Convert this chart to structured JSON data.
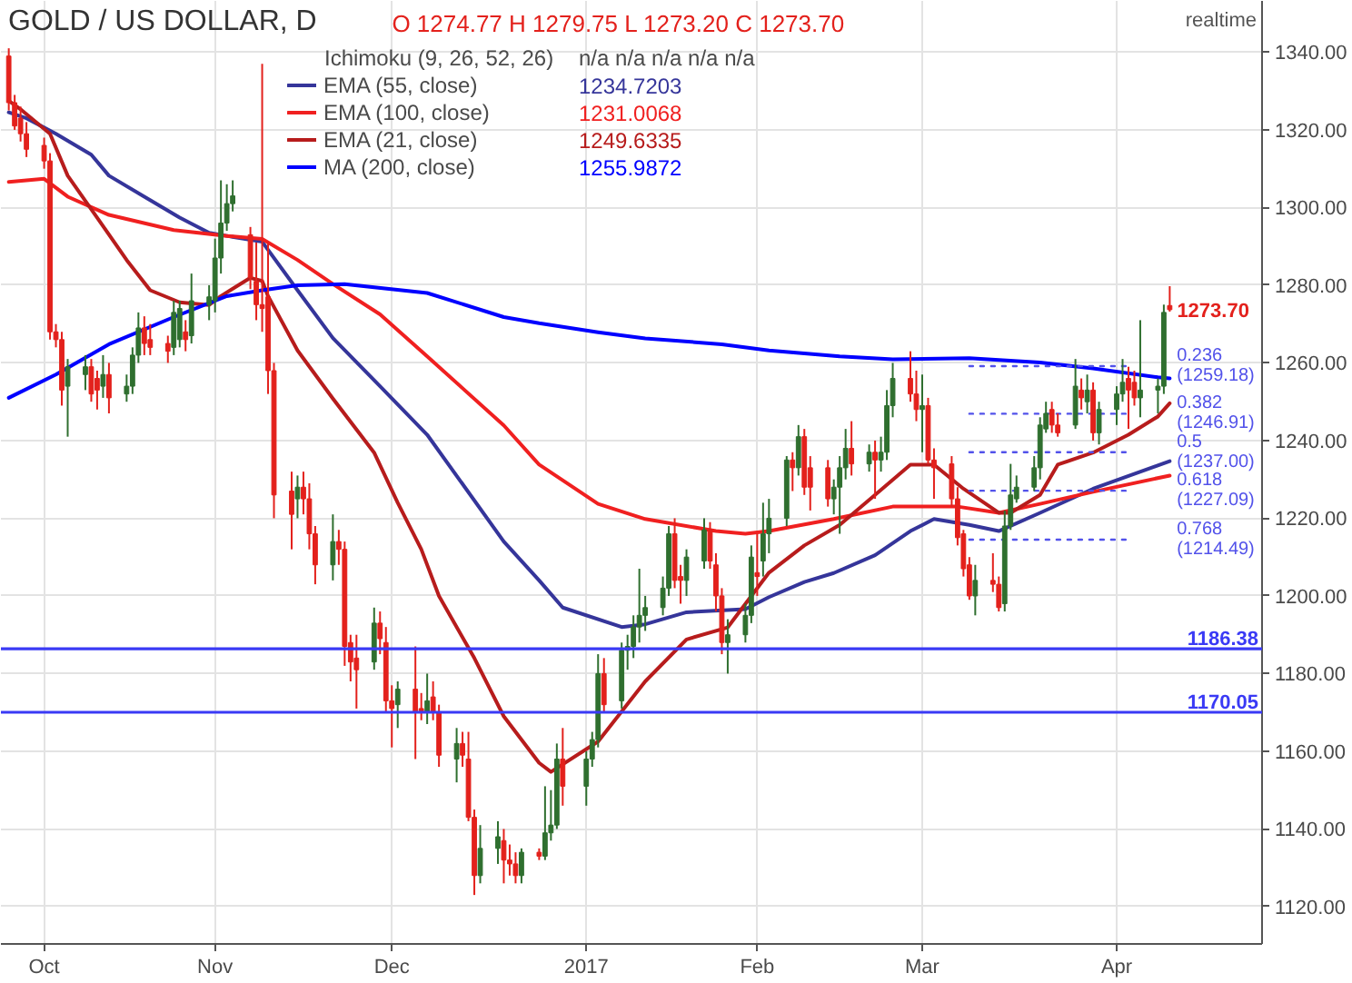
{
  "chart_data": {
    "type": "candlestick",
    "title": "GOLD / US DOLLAR, D",
    "subtitle": "O 1274.77 H 1279.75 L 1273.20 C 1273.70",
    "x": [
      "2016-09-27",
      "2016-09-28",
      "2016-09-29",
      "2016-09-30",
      "2016-10-03",
      "2016-10-04",
      "2016-10-05",
      "2016-10-06",
      "2016-10-07",
      "2016-10-10",
      "2016-10-11",
      "2016-10-12",
      "2016-10-13",
      "2016-10-14",
      "2016-10-17",
      "2016-10-18",
      "2016-10-19",
      "2016-10-20",
      "2016-10-21",
      "2016-10-24",
      "2016-10-25",
      "2016-10-26",
      "2016-10-27",
      "2016-10-28",
      "2016-10-31",
      "2016-11-01",
      "2016-11-02",
      "2016-11-03",
      "2016-11-04",
      "2016-11-07",
      "2016-11-08",
      "2016-11-09",
      "2016-11-10",
      "2016-11-11",
      "2016-11-14",
      "2016-11-15",
      "2016-11-16",
      "2016-11-17",
      "2016-11-18",
      "2016-11-21",
      "2016-11-22",
      "2016-11-23",
      "2016-11-24",
      "2016-11-25",
      "2016-11-28",
      "2016-11-29",
      "2016-11-30",
      "2016-12-01",
      "2016-12-02",
      "2016-12-05",
      "2016-12-06",
      "2016-12-07",
      "2016-12-08",
      "2016-12-09",
      "2016-12-12",
      "2016-12-13",
      "2016-12-14",
      "2016-12-15",
      "2016-12-16",
      "2016-12-19",
      "2016-12-20",
      "2016-12-21",
      "2016-12-22",
      "2016-12-23",
      "2016-12-26",
      "2016-12-27",
      "2016-12-28",
      "2016-12-29",
      "2016-12-30",
      "2017-01-03",
      "2017-01-04",
      "2017-01-05",
      "2017-01-06",
      "2017-01-09",
      "2017-01-10",
      "2017-01-11",
      "2017-01-12",
      "2017-01-13",
      "2017-01-16",
      "2017-01-17",
      "2017-01-18",
      "2017-01-19",
      "2017-01-20",
      "2017-01-23",
      "2017-01-24",
      "2017-01-25",
      "2017-01-26",
      "2017-01-27",
      "2017-01-30",
      "2017-01-31",
      "2017-02-01",
      "2017-02-02",
      "2017-02-03",
      "2017-02-06",
      "2017-02-07",
      "2017-02-08",
      "2017-02-09",
      "2017-02-10",
      "2017-02-13",
      "2017-02-14",
      "2017-02-15",
      "2017-02-16",
      "2017-02-17",
      "2017-02-20",
      "2017-02-21",
      "2017-02-22",
      "2017-02-23",
      "2017-02-24",
      "2017-02-27",
      "2017-02-28",
      "2017-03-01",
      "2017-03-02",
      "2017-03-03",
      "2017-03-06",
      "2017-03-07",
      "2017-03-08",
      "2017-03-09",
      "2017-03-10",
      "2017-03-13",
      "2017-03-14",
      "2017-03-15",
      "2017-03-16",
      "2017-03-17",
      "2017-03-20",
      "2017-03-21",
      "2017-03-22",
      "2017-03-23",
      "2017-03-24",
      "2017-03-27",
      "2017-03-28",
      "2017-03-29",
      "2017-03-30",
      "2017-03-31",
      "2017-04-03",
      "2017-04-04",
      "2017-04-05",
      "2017-04-06",
      "2017-04-07",
      "2017-04-10",
      "2017-04-11",
      "2017-04-12"
    ],
    "ohlc": [
      [
        1339,
        1341,
        1325,
        1327
      ],
      [
        1327,
        1329,
        1320,
        1321
      ],
      [
        1323,
        1326,
        1317,
        1319
      ],
      [
        1319,
        1322,
        1313,
        1315
      ],
      [
        1316,
        1318,
        1310,
        1312
      ],
      [
        1312,
        1314,
        1266,
        1268
      ],
      [
        1268,
        1270,
        1264,
        1266
      ],
      [
        1266,
        1268,
        1249,
        1253
      ],
      [
        1254,
        1261,
        1241,
        1259
      ],
      [
        1257,
        1262,
        1253,
        1259
      ],
      [
        1259,
        1261,
        1250,
        1252
      ],
      [
        1256,
        1258,
        1248,
        1253
      ],
      [
        1254,
        1262,
        1251,
        1257
      ],
      [
        1257,
        1260,
        1247,
        1251
      ],
      [
        1252,
        1257,
        1250,
        1254
      ],
      [
        1254,
        1264,
        1252,
        1262
      ],
      [
        1262,
        1273,
        1260,
        1269
      ],
      [
        1269,
        1272,
        1262,
        1265
      ],
      [
        1266,
        1270,
        1262,
        1264
      ],
      [
        1265,
        1267,
        1260,
        1263
      ],
      [
        1264,
        1276,
        1262,
        1273
      ],
      [
        1266,
        1276,
        1264,
        1274
      ],
      [
        1268,
        1271,
        1263,
        1266
      ],
      [
        1267,
        1283,
        1265,
        1276
      ],
      [
        1275,
        1280,
        1271,
        1277
      ],
      [
        1276,
        1292,
        1273,
        1287
      ],
      [
        1287,
        1307,
        1283,
        1296
      ],
      [
        1296,
        1306,
        1294,
        1301
      ],
      [
        1301,
        1307,
        1299,
        1303
      ],
      [
        1293,
        1295,
        1279,
        1282
      ],
      [
        1281,
        1291,
        1271,
        1275
      ],
      [
        1275,
        1337,
        1268,
        1274
      ],
      [
        1277,
        1291,
        1252,
        1258
      ],
      [
        1258,
        1260,
        1220,
        1226
      ],
      [
        1227,
        1232,
        1212,
        1221
      ],
      [
        1225,
        1231,
        1220,
        1228
      ],
      [
        1228,
        1232,
        1221,
        1225
      ],
      [
        1225,
        1229,
        1212,
        1216
      ],
      [
        1216,
        1218,
        1203,
        1208
      ],
      [
        1208,
        1221,
        1204,
        1214
      ],
      [
        1214,
        1217,
        1208,
        1212
      ],
      [
        1212,
        1214,
        1182,
        1187
      ],
      [
        1188,
        1190,
        1178,
        1183
      ],
      [
        1184,
        1190,
        1171,
        1181
      ],
      [
        1183,
        1197,
        1181,
        1193
      ],
      [
        1193,
        1196,
        1185,
        1189
      ],
      [
        1188,
        1192,
        1170,
        1173
      ],
      [
        1173,
        1177,
        1161,
        1171
      ],
      [
        1172,
        1178,
        1166,
        1176
      ],
      [
        1176,
        1187,
        1158,
        1170
      ],
      [
        1171,
        1175,
        1168,
        1170
      ],
      [
        1170,
        1180,
        1167,
        1173
      ],
      [
        1174,
        1178,
        1168,
        1170
      ],
      [
        1170,
        1172,
        1156,
        1159
      ],
      [
        1158,
        1166,
        1152,
        1162
      ],
      [
        1162,
        1165,
        1156,
        1159
      ],
      [
        1158,
        1165,
        1142,
        1143
      ],
      [
        1143,
        1145,
        1123,
        1128
      ],
      [
        1128,
        1141,
        1126,
        1135
      ],
      [
        1135,
        1142,
        1131,
        1138
      ],
      [
        1137,
        1140,
        1126,
        1132
      ],
      [
        1132,
        1136,
        1128,
        1131
      ],
      [
        1131,
        1134,
        1126,
        1128
      ],
      [
        1128,
        1135,
        1126,
        1134
      ],
      [
        1134,
        1135,
        1132,
        1133
      ],
      [
        1133,
        1151,
        1132,
        1139
      ],
      [
        1139,
        1150,
        1137,
        1141
      ],
      [
        1141,
        1162,
        1140,
        1158
      ],
      [
        1158,
        1166,
        1146,
        1151
      ],
      [
        1151,
        1160,
        1146,
        1158
      ],
      [
        1158,
        1165,
        1156,
        1163
      ],
      [
        1163,
        1185,
        1161,
        1180
      ],
      [
        1180,
        1184,
        1170,
        1172
      ],
      [
        1173,
        1188,
        1171,
        1186
      ],
      [
        1186,
        1190,
        1181,
        1187
      ],
      [
        1187,
        1195,
        1184,
        1192
      ],
      [
        1192,
        1207,
        1188,
        1195
      ],
      [
        1195,
        1200,
        1191,
        1197
      ],
      [
        1197,
        1205,
        1195,
        1202
      ],
      [
        1202,
        1218,
        1200,
        1216
      ],
      [
        1216,
        1220,
        1202,
        1204
      ],
      [
        1205,
        1208,
        1198,
        1204
      ],
      [
        1204,
        1212,
        1200,
        1210
      ],
      [
        1209,
        1220,
        1207,
        1217
      ],
      [
        1217,
        1219,
        1207,
        1209
      ],
      [
        1208,
        1211,
        1196,
        1200
      ],
      [
        1200,
        1202,
        1185,
        1188
      ],
      [
        1188,
        1194,
        1180,
        1190
      ],
      [
        1190,
        1198,
        1188,
        1195
      ],
      [
        1195,
        1213,
        1193,
        1210
      ],
      [
        1206,
        1216,
        1200,
        1205
      ],
      [
        1209,
        1224,
        1205,
        1216
      ],
      [
        1216,
        1225,
        1211,
        1220
      ],
      [
        1220,
        1236,
        1218,
        1235
      ],
      [
        1235,
        1237,
        1227,
        1233
      ],
      [
        1233,
        1244,
        1231,
        1241
      ],
      [
        1241,
        1243,
        1226,
        1228
      ],
      [
        1233,
        1236,
        1222,
        1228
      ],
      [
        1233,
        1235,
        1223,
        1225
      ],
      [
        1225,
        1230,
        1221,
        1228
      ],
      [
        1228,
        1236,
        1216,
        1233
      ],
      [
        1233,
        1243,
        1230,
        1238
      ],
      [
        1238,
        1245,
        1231,
        1234
      ],
      [
        1234,
        1239,
        1232,
        1237
      ],
      [
        1237,
        1240,
        1225,
        1235
      ],
      [
        1235,
        1241,
        1232,
        1237
      ],
      [
        1237,
        1253,
        1235,
        1249
      ],
      [
        1249,
        1260,
        1246,
        1256
      ],
      [
        1256,
        1263,
        1250,
        1252
      ],
      [
        1252,
        1258,
        1245,
        1248
      ],
      [
        1248,
        1257,
        1237,
        1249
      ],
      [
        1249,
        1251,
        1234,
        1235
      ],
      [
        1235,
        1238,
        1225,
        1233
      ],
      [
        1234,
        1236,
        1223,
        1225
      ],
      [
        1225,
        1228,
        1213,
        1215
      ],
      [
        1216,
        1217,
        1205,
        1207
      ],
      [
        1208,
        1210,
        1199,
        1200
      ],
      [
        1200,
        1208,
        1195,
        1204
      ],
      [
        1204,
        1211,
        1201,
        1203
      ],
      [
        1203,
        1205,
        1196,
        1197
      ],
      [
        1198,
        1222,
        1196,
        1218
      ],
      [
        1218,
        1234,
        1217,
        1226
      ],
      [
        1225,
        1231,
        1224,
        1228
      ],
      [
        1228,
        1236,
        1227,
        1233
      ],
      [
        1233,
        1246,
        1230,
        1244
      ],
      [
        1243,
        1250,
        1242,
        1247
      ],
      [
        1248,
        1250,
        1242,
        1244
      ],
      [
        1244,
        1247,
        1241,
        1242
      ],
      [
        1244,
        1261,
        1243,
        1254
      ],
      [
        1253,
        1256,
        1248,
        1251
      ],
      [
        1250,
        1257,
        1247,
        1253
      ],
      [
        1253,
        1255,
        1240,
        1242
      ],
      [
        1242,
        1250,
        1239,
        1248
      ],
      [
        1248,
        1254,
        1244,
        1252
      ],
      [
        1252,
        1261,
        1250,
        1255
      ],
      [
        1256,
        1259,
        1243,
        1253
      ],
      [
        1255,
        1258,
        1249,
        1251
      ],
      [
        1251,
        1271,
        1246,
        1253
      ],
      [
        1253,
        1256,
        1247,
        1254
      ],
      [
        1254,
        1275,
        1252,
        1273
      ],
      [
        1274.77,
        1279.75,
        1273.2,
        1273.7
      ]
    ],
    "colors": [
      "#e3211c",
      "#e3211c",
      "#e3211c",
      "#e3211c",
      "#e3211c",
      "#e3211c",
      "#e3211c",
      "#e3211c",
      "#2f6f2f",
      "#2f6f2f",
      "#e3211c",
      "#e3211c",
      "#2f6f2f",
      "#e3211c",
      "#2f6f2f",
      "#2f6f2f",
      "#2f6f2f",
      "#e3211c",
      "#e3211c",
      "#e3211c",
      "#2f6f2f",
      "#2f6f2f",
      "#e3211c",
      "#2f6f2f",
      "#2f6f2f",
      "#2f6f2f",
      "#2f6f2f",
      "#2f6f2f",
      "#2f6f2f",
      "#e3211c",
      "#e3211c",
      "#e3211c",
      "#e3211c",
      "#e3211c",
      "#e3211c",
      "#2f6f2f",
      "#e3211c",
      "#e3211c",
      "#e3211c",
      "#2f6f2f",
      "#e3211c",
      "#e3211c",
      "#e3211c",
      "#e3211c",
      "#2f6f2f",
      "#e3211c",
      "#e3211c",
      "#e3211c",
      "#2f6f2f",
      "#e3211c",
      "#e3211c",
      "#2f6f2f",
      "#e3211c",
      "#e3211c",
      "#2f6f2f",
      "#e3211c",
      "#e3211c",
      "#e3211c",
      "#2f6f2f",
      "#2f6f2f",
      "#e3211c",
      "#e3211c",
      "#e3211c",
      "#2f6f2f",
      "#e3211c",
      "#2f6f2f",
      "#2f6f2f",
      "#2f6f2f",
      "#e3211c",
      "#2f6f2f",
      "#2f6f2f",
      "#2f6f2f",
      "#e3211c",
      "#2f6f2f",
      "#2f6f2f",
      "#2f6f2f",
      "#2f6f2f",
      "#2f6f2f",
      "#2f6f2f",
      "#2f6f2f",
      "#e3211c",
      "#e3211c",
      "#2f6f2f",
      "#2f6f2f",
      "#e3211c",
      "#e3211c",
      "#e3211c",
      "#2f6f2f",
      "#2f6f2f",
      "#2f6f2f",
      "#e3211c",
      "#2f6f2f",
      "#2f6f2f",
      "#2f6f2f",
      "#e3211c",
      "#2f6f2f",
      "#e3211c",
      "#e3211c",
      "#e3211c",
      "#2f6f2f",
      "#2f6f2f",
      "#2f6f2f",
      "#e3211c",
      "#2f6f2f",
      "#e3211c",
      "#2f6f2f",
      "#2f6f2f",
      "#2f6f2f",
      "#e3211c",
      "#e3211c",
      "#2f6f2f",
      "#e3211c",
      "#e3211c",
      "#e3211c",
      "#e3211c",
      "#e3211c",
      "#e3211c",
      "#2f6f2f",
      "#e3211c",
      "#e3211c",
      "#2f6f2f",
      "#2f6f2f",
      "#2f6f2f",
      "#2f6f2f",
      "#2f6f2f",
      "#2f6f2f",
      "#e3211c",
      "#e3211c",
      "#2f6f2f",
      "#e3211c",
      "#2f6f2f",
      "#e3211c",
      "#2f6f2f",
      "#2f6f2f",
      "#2f6f2f",
      "#e3211c",
      "#e3211c",
      "#2f6f2f",
      "#2f6f2f",
      "#2f6f2f",
      "#e3211c"
    ],
    "series": [
      {
        "name": "EMA (55, close)",
        "color": "#35359a",
        "type": "line",
        "x": [
          "2016-09-27",
          "2016-09-30",
          "2016-10-05",
          "2016-10-11",
          "2016-10-14",
          "2016-10-20",
          "2016-10-26",
          "2016-10-31",
          "2016-11-03",
          "2016-11-09",
          "2016-11-15",
          "2016-11-21",
          "2016-11-29",
          "2016-12-07",
          "2016-12-20",
          "2016-12-26",
          "2016-12-30",
          "2017-01-09",
          "2017-01-13",
          "2017-01-20",
          "2017-01-30",
          "2017-02-03",
          "2017-02-09",
          "2017-02-14",
          "2017-02-21",
          "2017-02-27",
          "2017-03-03",
          "2017-03-09",
          "2017-03-14",
          "2017-03-21",
          "2017-03-30",
          "2017-04-12"
        ],
        "values": [
          1324.5,
          1323,
          1319,
          1313.6,
          1308.2,
          1302.8,
          1297.4,
          1293.5,
          1292.7,
          1291.2,
          1278.7,
          1266.4,
          1254,
          1241.5,
          1214,
          1204,
          1197,
          1192,
          1192.7,
          1195.8,
          1196.6,
          1199.7,
          1203.6,
          1205.9,
          1210.5,
          1216.7,
          1219.8,
          1218.3,
          1216.7,
          1221.4,
          1227.6,
          1234.7
        ]
      },
      {
        "name": "EMA (100, close)",
        "color": "#f02020",
        "type": "line",
        "x": [
          "2016-09-27",
          "2016-10-03",
          "2016-10-07",
          "2016-10-14",
          "2016-10-25",
          "2016-11-03",
          "2016-11-09",
          "2016-11-15",
          "2016-11-21",
          "2016-11-29",
          "2016-12-07",
          "2016-12-20",
          "2016-12-26",
          "2017-01-05",
          "2017-01-13",
          "2017-01-25",
          "2017-01-30",
          "2017-02-03",
          "2017-02-14",
          "2017-02-24",
          "2017-03-07",
          "2017-03-14",
          "2017-03-21",
          "2017-03-30",
          "2017-04-12"
        ],
        "values": [
          1306.6,
          1307.4,
          1302.8,
          1298.1,
          1294.2,
          1292.7,
          1291.9,
          1286.5,
          1280.3,
          1272.5,
          1261.7,
          1243.9,
          1233.8,
          1223.7,
          1219.8,
          1216.7,
          1216,
          1216.7,
          1219.8,
          1223,
          1223,
          1221.4,
          1223.7,
          1226.8,
          1231
        ]
      },
      {
        "name": "EMA (21, close)",
        "color": "#b71c1c",
        "type": "line",
        "x": [
          "2016-09-27",
          "2016-09-29",
          "2016-10-04",
          "2016-10-07",
          "2016-10-12",
          "2016-10-17",
          "2016-10-21",
          "2016-10-26",
          "2016-10-31",
          "2016-11-02",
          "2016-11-07",
          "2016-11-09",
          "2016-11-10",
          "2016-11-15",
          "2016-11-21",
          "2016-11-28",
          "2016-12-02",
          "2016-12-06",
          "2016-12-09",
          "2016-12-15",
          "2016-12-20",
          "2016-12-26",
          "2016-12-28",
          "2017-01-05",
          "2017-01-13",
          "2017-01-20",
          "2017-01-27",
          "2017-02-03",
          "2017-02-09",
          "2017-02-15",
          "2017-02-21",
          "2017-02-27",
          "2017-03-03",
          "2017-03-08",
          "2017-03-14",
          "2017-03-16",
          "2017-03-21",
          "2017-03-24",
          "2017-03-30",
          "2017-04-05",
          "2017-04-10",
          "2017-04-12"
        ],
        "values": [
          1327.5,
          1325.3,
          1319,
          1308.2,
          1297.4,
          1286.5,
          1278.7,
          1275.6,
          1274.9,
          1277.2,
          1281.9,
          1281.1,
          1277.2,
          1263.2,
          1250.8,
          1236.9,
          1224,
          1212,
          1200,
          1184,
          1169,
          1157,
          1154.7,
          1162.5,
          1178,
          1188.8,
          1191.9,
          1206,
          1213,
          1218.3,
          1226,
          1233.8,
          1233.8,
          1227.6,
          1221.4,
          1221.4,
          1226,
          1233.8,
          1236.9,
          1241.5,
          1246.2,
          1249.6
        ]
      },
      {
        "name": "MA (200, close)",
        "color": "#0000ff",
        "type": "line",
        "x": [
          "2016-09-27",
          "2016-10-05",
          "2016-10-14",
          "2016-10-25",
          "2016-11-03",
          "2016-11-09",
          "2016-11-15",
          "2016-11-23",
          "2016-12-07",
          "2016-12-20",
          "2016-12-26",
          "2017-01-05",
          "2017-01-13",
          "2017-01-26",
          "2017-02-03",
          "2017-02-15",
          "2017-02-24",
          "2017-03-09",
          "2017-03-21",
          "2017-03-30",
          "2017-04-10",
          "2017-04-12"
        ],
        "values": [
          1251,
          1257,
          1264.8,
          1271.8,
          1277.2,
          1278.7,
          1280,
          1280.3,
          1278,
          1271.8,
          1270.2,
          1267.9,
          1266.3,
          1264.8,
          1263.2,
          1261.7,
          1260.9,
          1261.2,
          1260.1,
          1258.6,
          1256.3,
          1256
        ]
      },
      {
        "color": "#5252ea",
        "type": "line",
        "line_style": "dotted",
        "x": [
          "2017-03-09",
          "2017-04-05"
        ],
        "values": [
          1259.18,
          1259.18
        ]
      },
      {
        "color": "#5252ea",
        "type": "line",
        "line_style": "dotted",
        "x": [
          "2017-03-09",
          "2017-04-05"
        ],
        "values": [
          1246.91,
          1246.91
        ]
      },
      {
        "color": "#5252ea",
        "type": "line",
        "line_style": "dotted",
        "x": [
          "2017-03-09",
          "2017-04-05"
        ],
        "values": [
          1237,
          1237
        ]
      },
      {
        "color": "#5252ea",
        "type": "line",
        "line_style": "dotted",
        "x": [
          "2017-03-09",
          "2017-04-05"
        ],
        "values": [
          1227.09,
          1227.09
        ]
      },
      {
        "color": "#5252ea",
        "type": "line",
        "line_style": "dotted",
        "x": [
          "2017-03-09",
          "2017-04-05"
        ],
        "values": [
          1214.49,
          1214.49
        ]
      }
    ],
    "ref_lines": [
      {
        "axis": "y",
        "value": 1186.38,
        "label": "1186.38",
        "color": "#3a3af5"
      },
      {
        "axis": "y",
        "value": 1170.05,
        "label": "1170.05",
        "color": "#3a3af5"
      }
    ],
    "annotations": [
      "Ichimoku (9, 26, 52, 26)",
      "n/a n/a n/a n/a n/a",
      "1234.7203",
      "1231.0068",
      "1249.6335",
      "1255.9872",
      "realtime",
      {
        "text": "1273.70",
        "x": "2017-04-12",
        "y": 1273.7
      },
      {
        "text": "0.236(1259.18)",
        "x": "2017-04-05",
        "y": 1259.18
      },
      {
        "text": "0.382(1246.91)",
        "x": "2017-04-05",
        "y": 1246.91
      },
      {
        "text": "0.5(1237.00)",
        "x": "2017-04-05",
        "y": 1237
      },
      {
        "text": "0.618(1227.09)",
        "x": "2017-04-05",
        "y": 1227.09
      },
      {
        "text": "0.768(1214.49)",
        "x": "2017-04-05",
        "y": 1214.49
      }
    ],
    "xlim": [
      "2016-09-25T16:00",
      "2017-04-27T16:00"
    ],
    "xticks": [
      {
        "value": "2016-10-03",
        "label": "Oct"
      },
      {
        "value": "2016-11-01",
        "label": "Nov"
      },
      {
        "value": "2016-12-01",
        "label": "Dec"
      },
      {
        "value": "2017-01-03",
        "label": "2017"
      },
      {
        "value": "2017-02-01",
        "label": "Feb"
      },
      {
        "value": "2017-03-01",
        "label": "Mar"
      },
      {
        "value": "2017-04-03",
        "label": "Apr"
      }
    ],
    "ylim": [
      1110.4,
      1353.2
    ],
    "yticks": [
      {
        "value": 1120,
        "label": "1120.00"
      },
      {
        "value": 1140,
        "label": "1140.00"
      },
      {
        "value": 1160,
        "label": "1160.00"
      },
      {
        "value": 1180,
        "label": "1180.00"
      },
      {
        "value": 1200,
        "label": "1200.00"
      },
      {
        "value": 1220,
        "label": "1220.00"
      },
      {
        "value": 1240,
        "label": "1240.00"
      },
      {
        "value": 1260,
        "label": "1260.00"
      },
      {
        "value": 1280,
        "label": "1280.00"
      },
      {
        "value": 1300,
        "label": "1300.00"
      },
      {
        "value": 1320,
        "label": "1320.00"
      },
      {
        "value": 1340,
        "label": "1340.00"
      }
    ],
    "grid": true,
    "legend": "top left"
  }
}
